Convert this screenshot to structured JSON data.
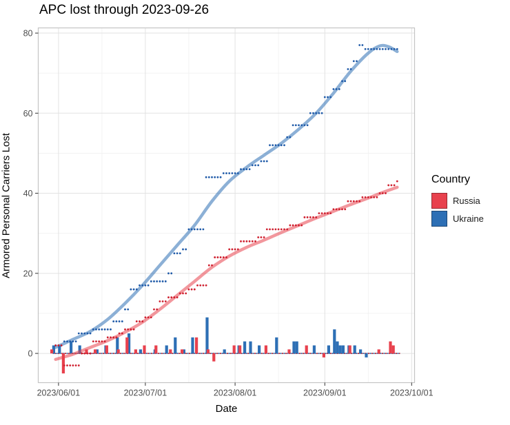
{
  "chart_data": {
    "type": "line",
    "subtype": "cumulative-scatter-with-loess-smooth-and-daily-bars",
    "title": "APC lost through 2023-09-26",
    "xlabel": "Date",
    "ylabel": "Armored Personal Carriers Lost",
    "x_domain": [
      "2023-05-25",
      "2023-10-02"
    ],
    "ylim": [
      -7.3,
      81.3
    ],
    "grid": true,
    "x_ticks": [
      {
        "date": "2023-06-01",
        "label": "2023/06/01"
      },
      {
        "date": "2023-07-01",
        "label": "2023/07/01"
      },
      {
        "date": "2023-08-01",
        "label": "2023/08/01"
      },
      {
        "date": "2023-09-01",
        "label": "2023/09/01"
      },
      {
        "date": "2023-10-01",
        "label": "2023/10/01"
      }
    ],
    "x_minor_ticks": [
      "2023-06-16",
      "2023-07-16",
      "2023-08-16",
      "2023-09-16"
    ],
    "y_ticks": [
      0,
      20,
      40,
      60,
      80
    ],
    "y_minor_ticks": [
      10,
      30,
      50,
      70
    ],
    "legend": {
      "title": "Country",
      "position": "right",
      "entries": [
        {
          "label": "Russia",
          "color": "#e8414d"
        },
        {
          "label": "Ukraine",
          "color": "#2d6fb5"
        }
      ]
    },
    "zero_line": {
      "value": 0,
      "style": "dotted",
      "colors": [
        "#1f4f93",
        "#b02030"
      ]
    },
    "series": [
      {
        "name": "Ukraine",
        "color": "#2d6fb5",
        "point_color": "#1f5aa8",
        "smooth_line_opacity": 0.55,
        "smooth": [
          [
            "2023-05-31",
            1.5
          ],
          [
            "2023-06-06",
            3.5
          ],
          [
            "2023-06-12",
            5.5
          ],
          [
            "2023-06-18",
            8.5
          ],
          [
            "2023-06-24",
            12.5
          ],
          [
            "2023-06-30",
            17
          ],
          [
            "2023-07-06",
            22
          ],
          [
            "2023-07-12",
            27
          ],
          [
            "2023-07-18",
            32
          ],
          [
            "2023-07-24",
            38
          ],
          [
            "2023-07-30",
            43
          ],
          [
            "2023-08-05",
            46.5
          ],
          [
            "2023-08-11",
            49.5
          ],
          [
            "2023-08-17",
            52.5
          ],
          [
            "2023-08-23",
            56
          ],
          [
            "2023-08-29",
            60
          ],
          [
            "2023-09-04",
            65
          ],
          [
            "2023-09-10",
            70.5
          ],
          [
            "2023-09-16",
            75
          ],
          [
            "2023-09-20",
            76.8
          ],
          [
            "2023-09-23",
            76.6
          ],
          [
            "2023-09-26",
            75.4
          ]
        ],
        "cumulative_runs": [
          [
            "2023-05-31",
            "2023-06-02",
            2
          ],
          [
            "2023-06-03",
            "2023-06-07",
            3
          ],
          [
            "2023-06-08",
            "2023-06-12",
            5
          ],
          [
            "2023-06-13",
            "2023-06-19",
            6
          ],
          [
            "2023-06-20",
            "2023-06-23",
            8
          ],
          [
            "2023-06-24",
            "2023-06-25",
            11
          ],
          [
            "2023-06-26",
            "2023-06-28",
            16
          ],
          [
            "2023-06-29",
            "2023-07-02",
            17
          ],
          [
            "2023-07-03",
            "2023-07-08",
            18
          ],
          [
            "2023-07-09",
            "2023-07-10",
            20
          ],
          [
            "2023-07-11",
            "2023-07-13",
            25
          ],
          [
            "2023-07-14",
            "2023-07-15",
            26
          ],
          [
            "2023-07-16",
            "2023-07-21",
            31
          ],
          [
            "2023-07-22",
            "2023-07-27",
            44
          ],
          [
            "2023-07-28",
            "2023-08-02",
            45
          ],
          [
            "2023-08-03",
            "2023-08-06",
            46
          ],
          [
            "2023-08-07",
            "2023-08-09",
            47
          ],
          [
            "2023-08-10",
            "2023-08-12",
            48
          ],
          [
            "2023-08-13",
            "2023-08-18",
            52
          ],
          [
            "2023-08-19",
            "2023-08-20",
            54
          ],
          [
            "2023-08-21",
            "2023-08-26",
            57
          ],
          [
            "2023-08-27",
            "2023-08-31",
            60
          ],
          [
            "2023-09-01",
            "2023-09-03",
            64
          ],
          [
            "2023-09-04",
            "2023-09-06",
            66
          ],
          [
            "2023-09-07",
            "2023-09-08",
            68
          ],
          [
            "2023-09-09",
            "2023-09-10",
            71
          ],
          [
            "2023-09-11",
            "2023-09-12",
            73
          ],
          [
            "2023-09-13",
            "2023-09-14",
            77
          ],
          [
            "2023-09-15",
            "2023-09-26",
            76
          ]
        ],
        "daily_bars": [
          [
            "2023-05-30",
            2
          ],
          [
            "2023-06-01",
            2
          ],
          [
            "2023-06-05",
            3
          ],
          [
            "2023-06-08",
            2
          ],
          [
            "2023-06-14",
            1
          ],
          [
            "2023-06-17",
            2
          ],
          [
            "2023-06-21",
            4
          ],
          [
            "2023-06-25",
            5
          ],
          [
            "2023-06-29",
            1
          ],
          [
            "2023-07-04",
            1
          ],
          [
            "2023-07-08",
            2
          ],
          [
            "2023-07-11",
            4
          ],
          [
            "2023-07-14",
            1
          ],
          [
            "2023-07-17",
            4
          ],
          [
            "2023-07-22",
            9
          ],
          [
            "2023-07-28",
            1
          ],
          [
            "2023-08-02",
            2
          ],
          [
            "2023-08-04",
            3
          ],
          [
            "2023-08-06",
            3
          ],
          [
            "2023-08-09",
            2
          ],
          [
            "2023-08-15",
            4
          ],
          [
            "2023-08-21",
            3
          ],
          [
            "2023-08-22",
            3
          ],
          [
            "2023-08-28",
            2
          ],
          [
            "2023-09-02",
            2
          ],
          [
            "2023-09-04",
            6
          ],
          [
            "2023-09-05",
            3
          ],
          [
            "2023-09-06",
            2
          ],
          [
            "2023-09-07",
            2
          ],
          [
            "2023-09-09",
            2
          ],
          [
            "2023-09-11",
            2
          ],
          [
            "2023-09-13",
            1
          ],
          [
            "2023-09-15",
            -1
          ]
        ]
      },
      {
        "name": "Russia",
        "color": "#e8414d",
        "point_color": "#cf2130",
        "smooth_line_opacity": 0.55,
        "smooth": [
          [
            "2023-05-31",
            -1.5
          ],
          [
            "2023-06-06",
            -0.2
          ],
          [
            "2023-06-12",
            1.5
          ],
          [
            "2023-06-18",
            3.2
          ],
          [
            "2023-06-24",
            5.3
          ],
          [
            "2023-06-30",
            7.8
          ],
          [
            "2023-07-06",
            11
          ],
          [
            "2023-07-12",
            14.5
          ],
          [
            "2023-07-18",
            18
          ],
          [
            "2023-07-24",
            21.5
          ],
          [
            "2023-07-30",
            24.3
          ],
          [
            "2023-08-05",
            26.5
          ],
          [
            "2023-08-11",
            28.3
          ],
          [
            "2023-08-17",
            30.2
          ],
          [
            "2023-08-23",
            32
          ],
          [
            "2023-08-29",
            33.8
          ],
          [
            "2023-09-04",
            35.5
          ],
          [
            "2023-09-10",
            37.2
          ],
          [
            "2023-09-16",
            38.8
          ],
          [
            "2023-09-21",
            40.2
          ],
          [
            "2023-09-26",
            41.5
          ]
        ],
        "cumulative_runs": [
          [
            "2023-05-31",
            "2023-06-02",
            2
          ],
          [
            "2023-06-03",
            "2023-06-08",
            -3
          ],
          [
            "2023-06-09",
            "2023-06-12",
            0
          ],
          [
            "2023-06-13",
            "2023-06-17",
            3
          ],
          [
            "2023-06-18",
            "2023-06-21",
            4
          ],
          [
            "2023-06-22",
            "2023-06-23",
            5
          ],
          [
            "2023-06-24",
            "2023-06-27",
            6
          ],
          [
            "2023-06-28",
            "2023-06-30",
            8
          ],
          [
            "2023-07-01",
            "2023-07-03",
            9
          ],
          [
            "2023-07-04",
            "2023-07-05",
            11
          ],
          [
            "2023-07-06",
            "2023-07-08",
            13
          ],
          [
            "2023-07-09",
            "2023-07-12",
            14
          ],
          [
            "2023-07-13",
            "2023-07-15",
            15
          ],
          [
            "2023-07-16",
            "2023-07-18",
            16
          ],
          [
            "2023-07-19",
            "2023-07-22",
            17
          ],
          [
            "2023-07-23",
            "2023-07-24",
            22
          ],
          [
            "2023-07-25",
            "2023-07-29",
            24
          ],
          [
            "2023-07-30",
            "2023-08-02",
            26
          ],
          [
            "2023-08-03",
            "2023-08-08",
            28
          ],
          [
            "2023-08-09",
            "2023-08-11",
            29
          ],
          [
            "2023-08-12",
            "2023-08-19",
            31
          ],
          [
            "2023-08-20",
            "2023-08-24",
            32
          ],
          [
            "2023-08-25",
            "2023-08-29",
            34
          ],
          [
            "2023-08-30",
            "2023-09-03",
            35
          ],
          [
            "2023-09-04",
            "2023-09-08",
            36
          ],
          [
            "2023-09-09",
            "2023-09-13",
            38
          ],
          [
            "2023-09-14",
            "2023-09-19",
            39
          ],
          [
            "2023-09-20",
            "2023-09-22",
            40
          ],
          [
            "2023-09-23",
            "2023-09-25",
            42
          ],
          [
            "2023-09-26",
            "2023-09-26",
            43
          ]
        ],
        "daily_bars": [
          [
            "2023-05-30",
            1
          ],
          [
            "2023-06-03",
            -5
          ],
          [
            "2023-06-11",
            1
          ],
          [
            "2023-06-14",
            1
          ],
          [
            "2023-06-18",
            2
          ],
          [
            "2023-06-22",
            1
          ],
          [
            "2023-06-25",
            4
          ],
          [
            "2023-06-28",
            1
          ],
          [
            "2023-07-01",
            2
          ],
          [
            "2023-07-05",
            2
          ],
          [
            "2023-07-10",
            1
          ],
          [
            "2023-07-14",
            1
          ],
          [
            "2023-07-19",
            4
          ],
          [
            "2023-07-23",
            1
          ],
          [
            "2023-07-25",
            -2
          ],
          [
            "2023-08-01",
            2
          ],
          [
            "2023-08-03",
            2
          ],
          [
            "2023-08-12",
            2
          ],
          [
            "2023-08-20",
            1
          ],
          [
            "2023-08-26",
            2
          ],
          [
            "2023-09-01",
            -1
          ],
          [
            "2023-09-10",
            2
          ],
          [
            "2023-09-20",
            1
          ],
          [
            "2023-09-24",
            3
          ],
          [
            "2023-09-25",
            2
          ]
        ]
      }
    ]
  }
}
